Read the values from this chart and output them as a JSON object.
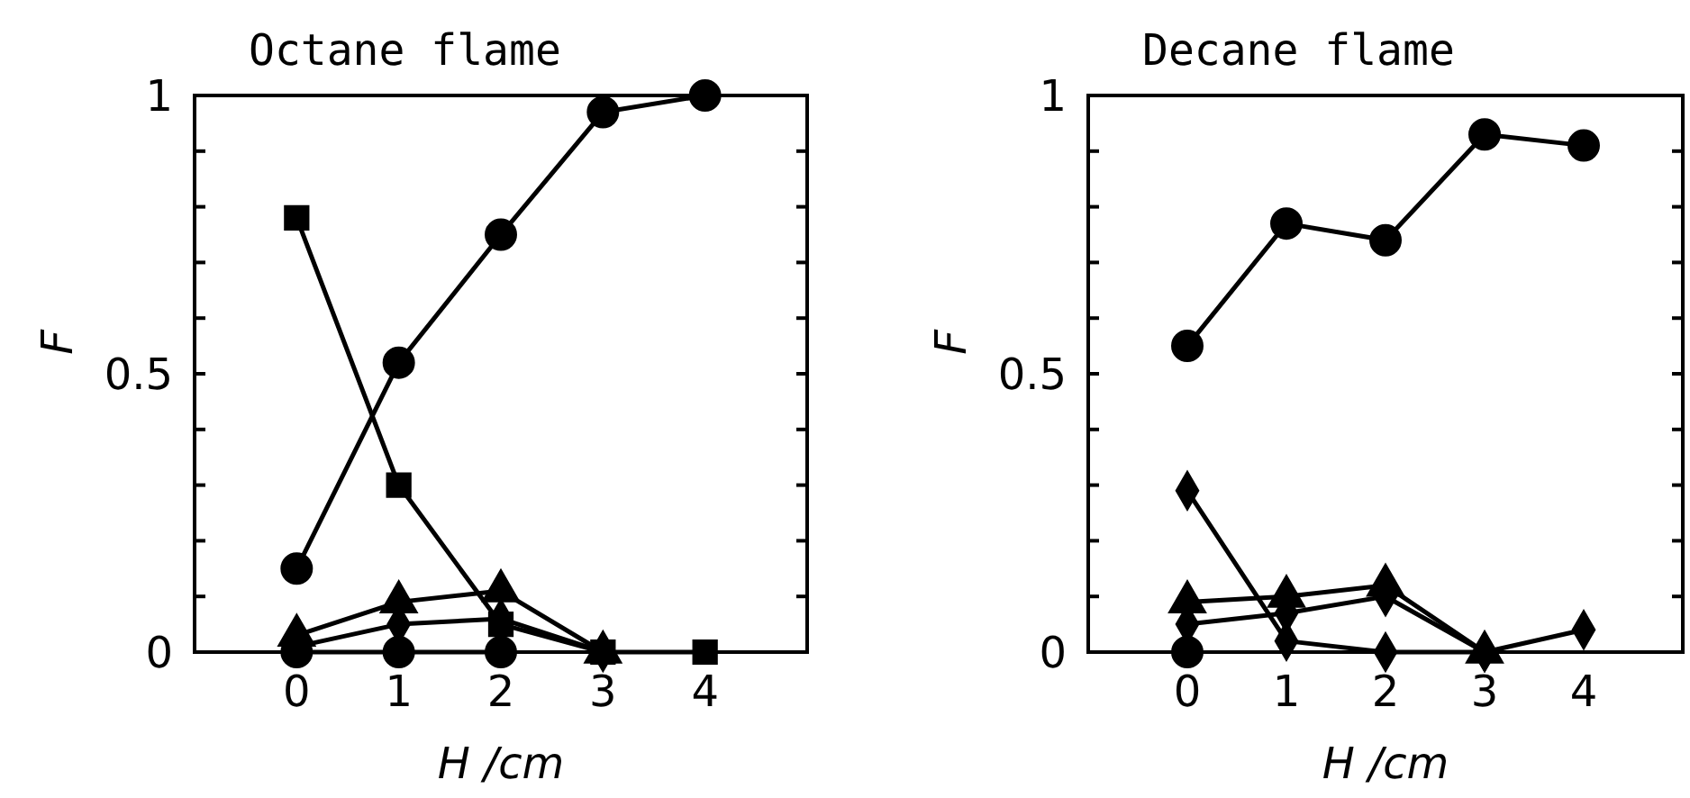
{
  "chart_data": [
    {
      "type": "line",
      "title": "Octane flame",
      "xlabel": "H /cm",
      "ylabel": "F",
      "x": [
        0,
        1,
        2,
        3,
        4
      ],
      "xlim": [
        -1,
        5
      ],
      "xticks": [
        0,
        1,
        2,
        3,
        4
      ],
      "ylim": [
        0,
        1
      ],
      "yticks": [
        0,
        {
          "value": 0.1,
          "label": null
        },
        {
          "value": 0.2,
          "label": null
        },
        {
          "value": 0.3,
          "label": null
        },
        {
          "value": 0.4,
          "label": null
        },
        0.5,
        {
          "value": 0.6,
          "label": null
        },
        {
          "value": 0.7,
          "label": null
        },
        {
          "value": 0.8,
          "label": null
        },
        {
          "value": 0.9,
          "label": null
        },
        1
      ],
      "grid": false,
      "line_style": "solid",
      "series": [
        {
          "color": "#000000",
          "marker": "circle",
          "values": [
            0.15,
            0.52,
            0.75,
            0.97,
            1.0
          ]
        },
        {
          "color": "#000000",
          "marker": "square",
          "values": [
            0.78,
            0.3,
            0.05,
            0.0,
            0.0
          ]
        },
        {
          "color": "#000000",
          "marker": "triangle",
          "values": [
            0.03,
            0.09,
            0.11,
            0.0,
            null
          ]
        },
        {
          "color": "#000000",
          "marker": "diamond",
          "values": [
            0.01,
            0.05,
            0.06,
            0.0,
            null
          ]
        },
        {
          "color": "#000000",
          "marker": "circle",
          "values": [
            0.0,
            0.0,
            0.0,
            null,
            null
          ]
        }
      ]
    },
    {
      "type": "line",
      "title": "Decane flame",
      "xlabel": "H /cm",
      "ylabel": "F",
      "x": [
        0,
        1,
        2,
        3,
        4
      ],
      "xlim": [
        -1,
        5
      ],
      "xticks": [
        0,
        1,
        2,
        3,
        4
      ],
      "ylim": [
        0,
        1
      ],
      "yticks": [
        0,
        {
          "value": 0.1,
          "label": null
        },
        {
          "value": 0.2,
          "label": null
        },
        {
          "value": 0.3,
          "label": null
        },
        {
          "value": 0.4,
          "label": null
        },
        0.5,
        {
          "value": 0.6,
          "label": null
        },
        {
          "value": 0.7,
          "label": null
        },
        {
          "value": 0.8,
          "label": null
        },
        {
          "value": 0.9,
          "label": null
        },
        1
      ],
      "grid": false,
      "line_style": "solid",
      "series": [
        {
          "color": "#000000",
          "marker": "circle",
          "values": [
            0.55,
            0.77,
            0.74,
            0.93,
            0.91
          ]
        },
        {
          "color": "#000000",
          "marker": "diamond",
          "values": [
            0.29,
            0.02,
            0.0,
            0.0,
            0.04
          ]
        },
        {
          "color": "#000000",
          "marker": "triangle",
          "values": [
            0.09,
            0.1,
            0.12,
            0.0,
            null
          ]
        },
        {
          "color": "#000000",
          "marker": "diamond",
          "values": [
            0.05,
            0.07,
            0.1,
            0.0,
            null
          ]
        },
        {
          "color": "#000000",
          "marker": "circle",
          "values": [
            0.0,
            null,
            null,
            null,
            null
          ]
        }
      ]
    }
  ]
}
